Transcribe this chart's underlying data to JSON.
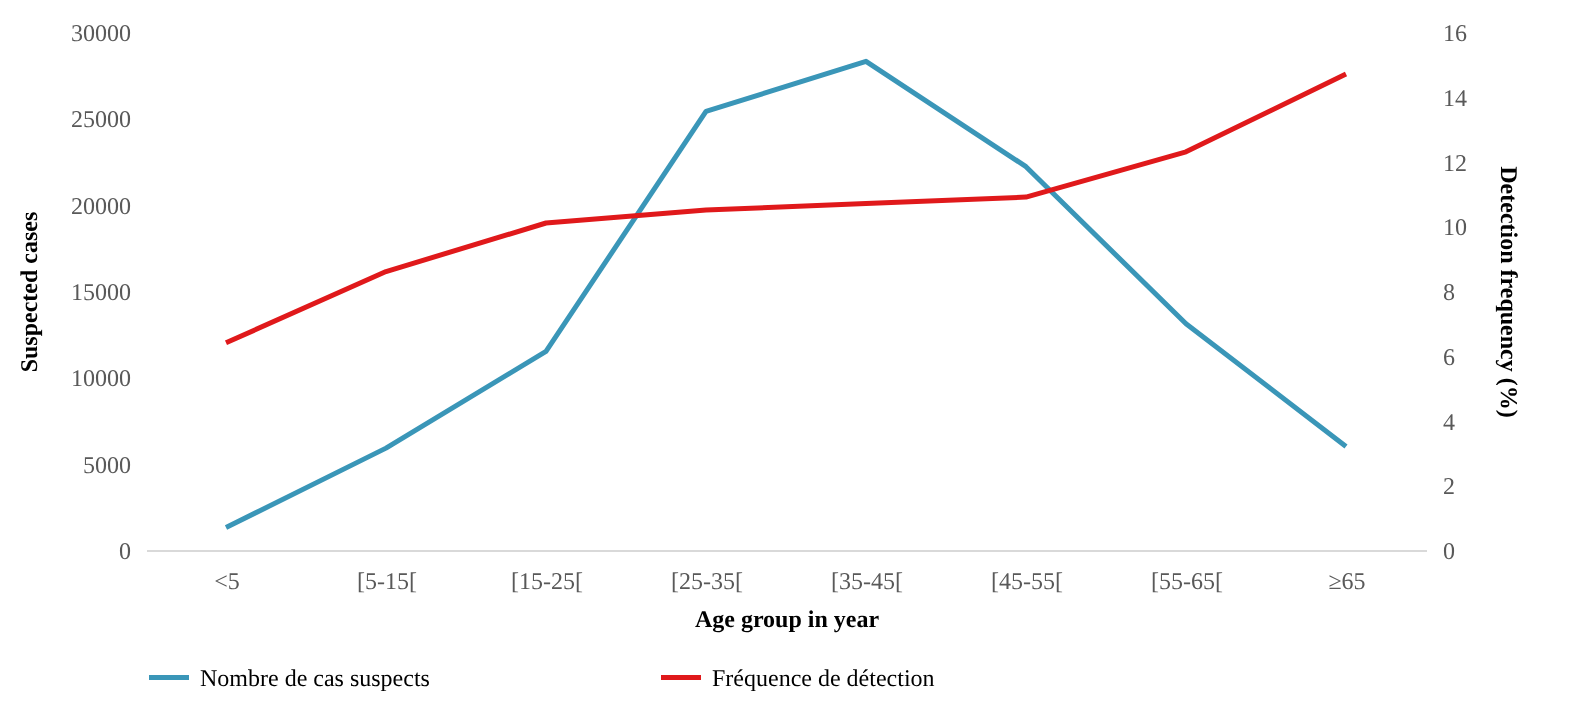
{
  "chart_data": {
    "type": "line",
    "xlabel": "Age group  in year",
    "ylabel": "Suspected cases",
    "y2label": "Detection frequency (%)",
    "categories": [
      "<5",
      "[5-15[",
      "[15-25[",
      "[25-35[",
      "[35-45[",
      "[45-55[",
      "[55-65[",
      "≥65"
    ],
    "series": [
      {
        "name": "Nombre de cas suspects",
        "color": "#3a96b8",
        "values": [
          1300,
          5900,
          11500,
          25400,
          28300,
          22200,
          13100,
          6000
        ]
      },
      {
        "name": "Fréquence de détection",
        "color": "#e0191b",
        "axis": "y2",
        "values": [
          6.4,
          8.6,
          10.1,
          10.5,
          10.7,
          10.9,
          12.3,
          14.7
        ]
      }
    ],
    "ylim": [
      0,
      30000
    ],
    "yticks": [
      0,
      5000,
      10000,
      15000,
      20000,
      25000,
      30000
    ],
    "y2lim": [
      0,
      16
    ],
    "y2ticks": [
      0,
      2,
      4,
      6,
      8,
      10,
      12,
      14,
      16
    ],
    "grid": false,
    "legend": "bottom",
    "marker": "none",
    "line_style": "solid"
  }
}
